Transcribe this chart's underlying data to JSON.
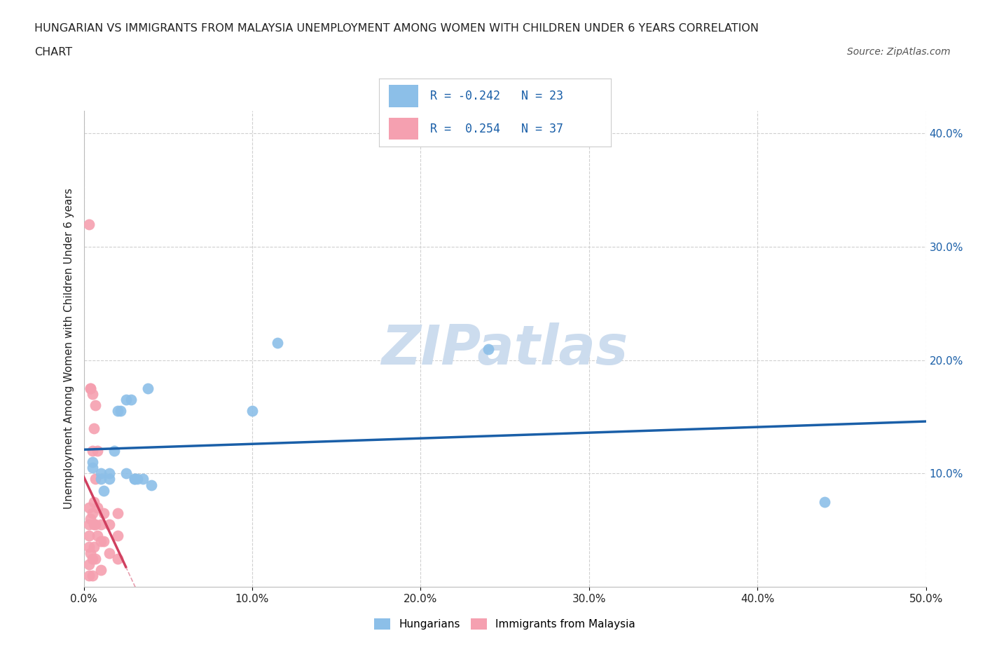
{
  "title_line1": "HUNGARIAN VS IMMIGRANTS FROM MALAYSIA UNEMPLOYMENT AMONG WOMEN WITH CHILDREN UNDER 6 YEARS CORRELATION",
  "title_line2": "CHART",
  "source": "Source: ZipAtlas.com",
  "ylabel_text": "Unemployment Among Women with Children Under 6 years",
  "xlim": [
    0.0,
    0.5
  ],
  "ylim": [
    0.0,
    0.42
  ],
  "xtick_labels": [
    "0.0%",
    "10.0%",
    "20.0%",
    "30.0%",
    "40.0%",
    "50.0%"
  ],
  "xtick_vals": [
    0.0,
    0.1,
    0.2,
    0.3,
    0.4,
    0.5
  ],
  "ytick_vals": [
    0.1,
    0.2,
    0.3,
    0.4
  ],
  "right_ytick_labels": [
    "10.0%",
    "20.0%",
    "30.0%",
    "40.0%"
  ],
  "right_ytick_vals": [
    0.1,
    0.2,
    0.3,
    0.4
  ],
  "hungarian_color": "#8cbfe8",
  "malaysia_color": "#f5a0b0",
  "trend_blue_color": "#1a5fa8",
  "trend_pink_color": "#d04060",
  "R_hungarian": -0.242,
  "N_hungarian": 23,
  "R_malaysia": 0.254,
  "N_malaysia": 37,
  "hungarian_x": [
    0.005,
    0.005,
    0.01,
    0.01,
    0.012,
    0.015,
    0.015,
    0.018,
    0.02,
    0.022,
    0.025,
    0.025,
    0.028,
    0.03,
    0.03,
    0.032,
    0.035,
    0.038,
    0.04,
    0.1,
    0.115,
    0.24,
    0.44
  ],
  "hungarian_y": [
    0.105,
    0.11,
    0.095,
    0.1,
    0.085,
    0.095,
    0.1,
    0.12,
    0.155,
    0.155,
    0.165,
    0.1,
    0.165,
    0.095,
    0.095,
    0.095,
    0.095,
    0.175,
    0.09,
    0.155,
    0.215,
    0.21,
    0.075
  ],
  "malaysia_x": [
    0.003,
    0.003,
    0.003,
    0.003,
    0.003,
    0.003,
    0.003,
    0.004,
    0.004,
    0.004,
    0.004,
    0.005,
    0.005,
    0.005,
    0.005,
    0.005,
    0.006,
    0.006,
    0.006,
    0.006,
    0.007,
    0.007,
    0.007,
    0.007,
    0.008,
    0.008,
    0.008,
    0.01,
    0.01,
    0.01,
    0.012,
    0.012,
    0.015,
    0.015,
    0.02,
    0.02,
    0.02
  ],
  "malaysia_y": [
    0.32,
    0.07,
    0.055,
    0.045,
    0.035,
    0.02,
    0.01,
    0.175,
    0.175,
    0.06,
    0.03,
    0.17,
    0.12,
    0.065,
    0.025,
    0.01,
    0.14,
    0.075,
    0.055,
    0.035,
    0.16,
    0.095,
    0.055,
    0.025,
    0.12,
    0.07,
    0.045,
    0.055,
    0.04,
    0.015,
    0.065,
    0.04,
    0.055,
    0.03,
    0.065,
    0.045,
    0.025
  ],
  "background_color": "#ffffff",
  "grid_color": "#d0d0d0",
  "watermark_color": "#ccdcee",
  "legend_R_color": "#1a5fa8",
  "legend_text_color": "#222222",
  "axis_label_color": "#222222",
  "right_axis_color": "#1a5fa8",
  "source_color": "#555555"
}
